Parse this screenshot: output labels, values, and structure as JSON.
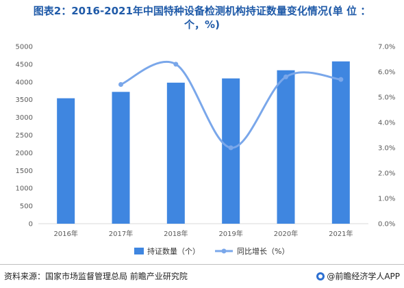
{
  "title_line1": "图表2：2016-2021年中国特种设备检测机构持证数量变化情况(单 位 ：",
  "title_line2": "个，%)",
  "source": "资料来源：国家市场监督管理总局 前瞻产业研究院",
  "brand": "@前瞻经济学人APP",
  "icons": {
    "brand_logo": "qianzhan-logo-icon"
  },
  "colors": {
    "bar": "#3f86e0",
    "line": "#7aa7ea",
    "axis": "#d9d9d9",
    "title": "#1f5aa8"
  },
  "chart_data": {
    "type": "bar+line",
    "categories": [
      "2016年",
      "2017年",
      "2018年",
      "2019年",
      "2020年",
      "2021年"
    ],
    "series": [
      {
        "name": "持证数量（个）",
        "type": "bar",
        "axis": "left",
        "values": [
          3540,
          3720,
          3980,
          4100,
          4330,
          4580
        ]
      },
      {
        "name": "同比增长（%）",
        "type": "line",
        "axis": "right",
        "values": [
          null,
          5.5,
          6.3,
          3.0,
          5.8,
          5.7
        ]
      }
    ],
    "y_left": {
      "min": 0,
      "max": 5000,
      "step": 500,
      "ticks": [
        "0",
        "500",
        "1000",
        "1500",
        "2000",
        "2500",
        "3000",
        "3500",
        "4000",
        "4500",
        "5000"
      ]
    },
    "y_right": {
      "min": 0,
      "max": 7,
      "step": 1,
      "ticks": [
        "0.0%",
        "1.0%",
        "2.0%",
        "3.0%",
        "4.0%",
        "5.0%",
        "6.0%",
        "7.0%"
      ]
    },
    "grid": false,
    "legend_position": "bottom-center"
  }
}
